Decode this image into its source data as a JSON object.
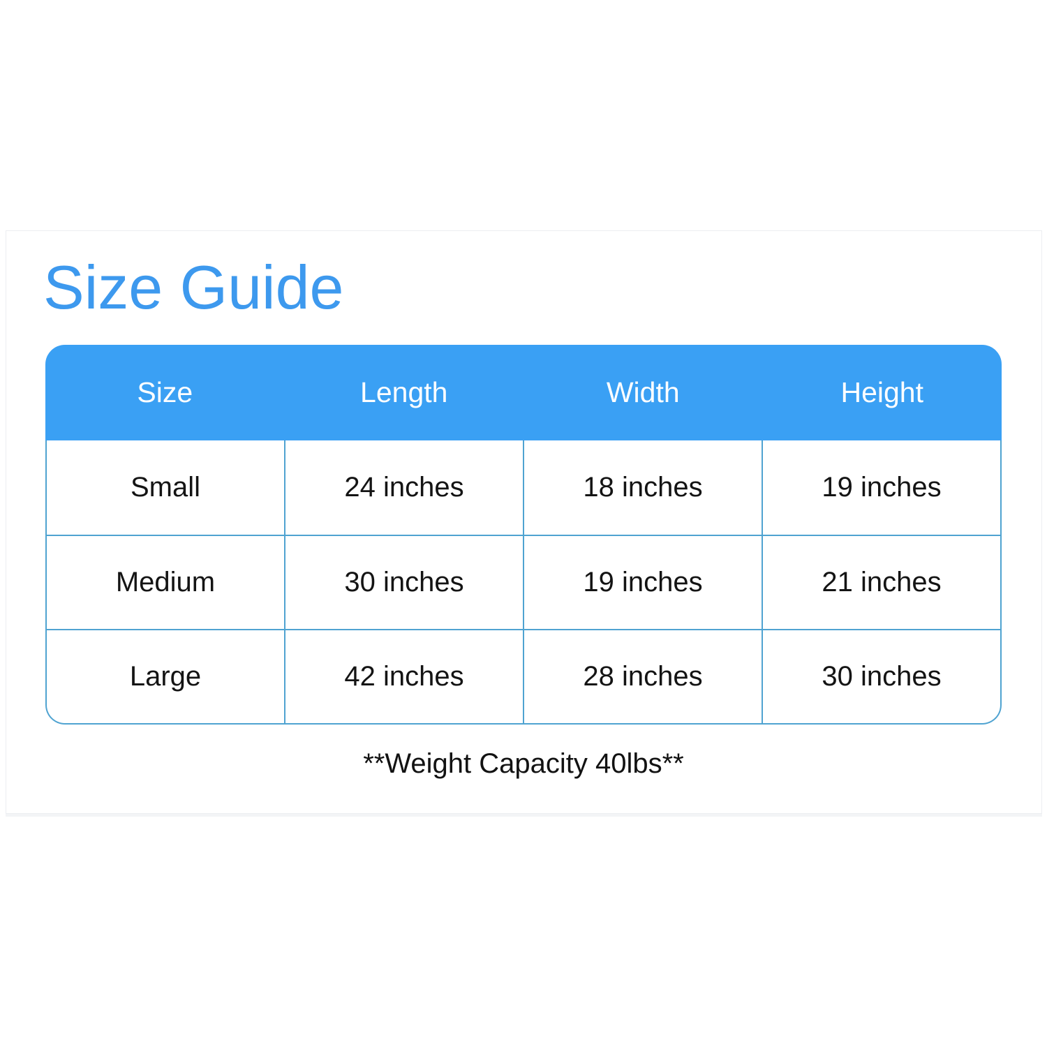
{
  "chart_data": {
    "type": "table",
    "title": "Size Guide",
    "columns": [
      "Size",
      "Length",
      "Width",
      "Height"
    ],
    "rows": [
      [
        "Small",
        "24 inches",
        "18 inches",
        "19 inches"
      ],
      [
        "Medium",
        "30 inches",
        "19 inches",
        "21 inches"
      ],
      [
        "Large",
        "42 inches",
        "28 inches",
        "30 inches"
      ]
    ],
    "note": "**Weight Capacity 40lbs**",
    "layout_hints": {
      "header_position": "top",
      "grid": "on",
      "corner_style": "rounded"
    }
  },
  "colors": {
    "title_blue": "#3d99ee",
    "header_blue": "#3aa0f4",
    "header_text": "#fdfeff",
    "grid_border_blue": "#4fa3d1",
    "body_text": "#141414",
    "card_border": "#eceef1",
    "background": "#ffffff"
  }
}
